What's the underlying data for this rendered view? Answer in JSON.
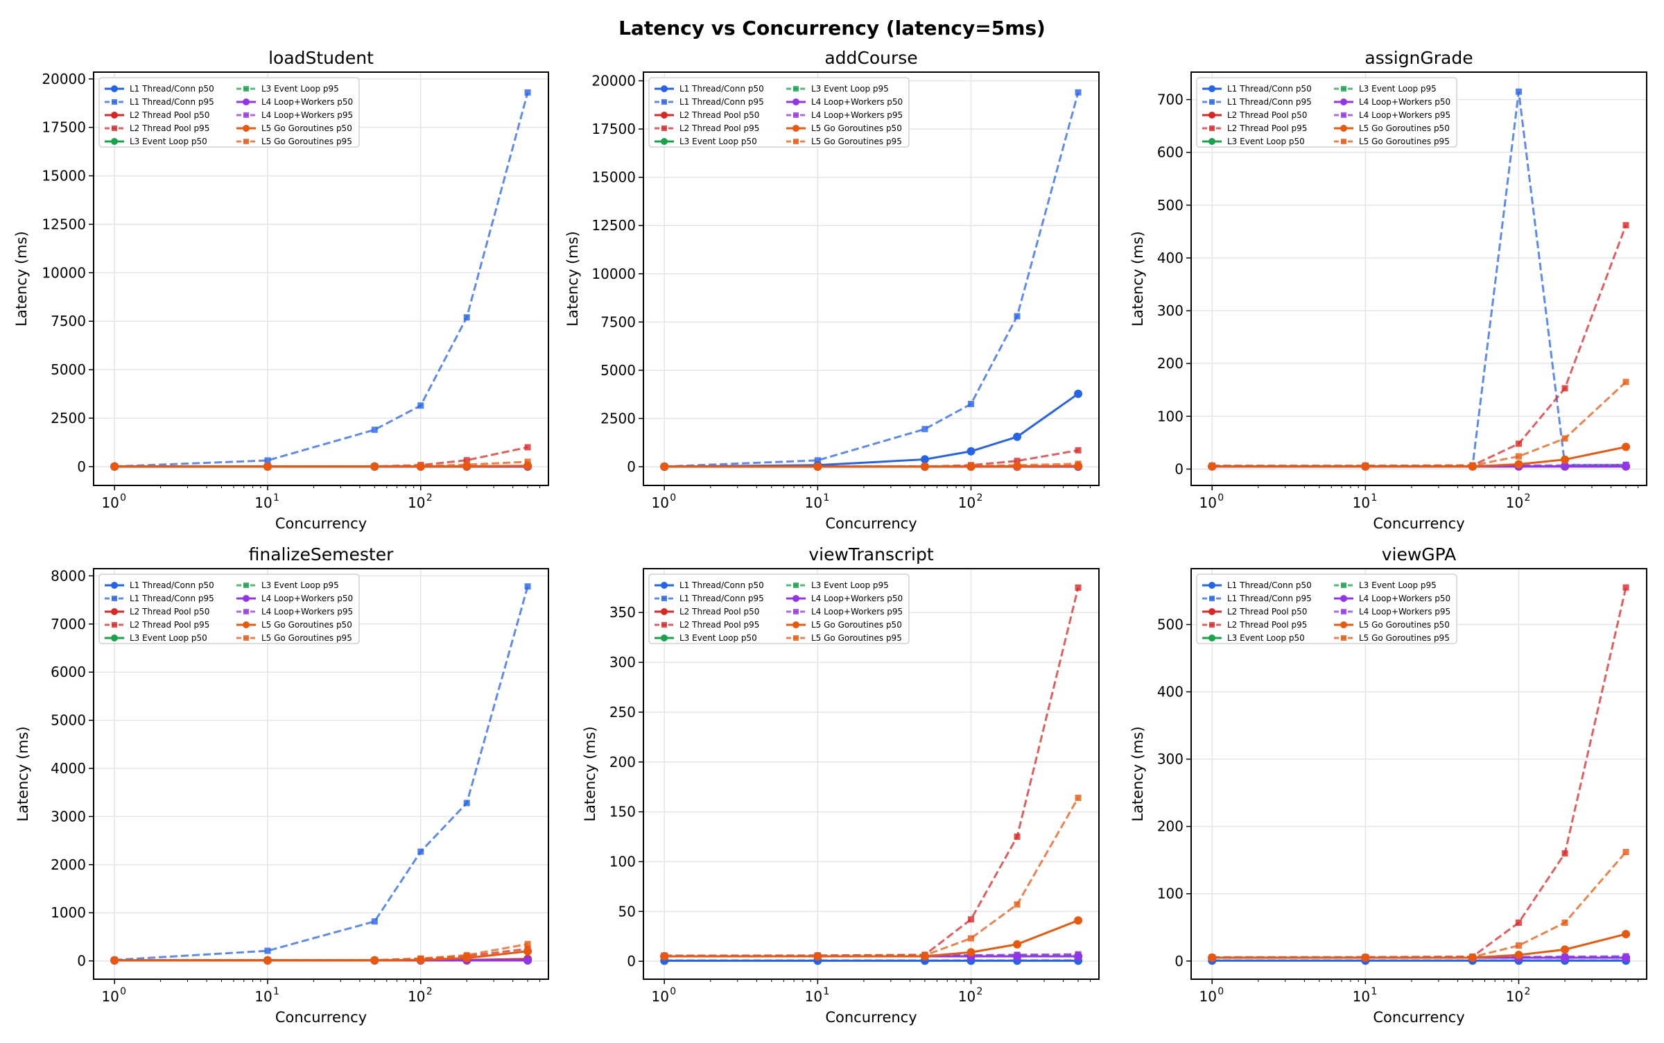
{
  "title": "Latency vs Concurrency (latency=5ms)",
  "series_styles": [
    {
      "name": "L1 Thread/Conn p50",
      "color": "#2563eb",
      "dash": false,
      "marker": "circle"
    },
    {
      "name": "L1 Thread/Conn p95",
      "color": "#2563eb",
      "dash": true,
      "marker": "square"
    },
    {
      "name": "L2 Thread Pool p50",
      "color": "#dc2626",
      "dash": false,
      "marker": "circle"
    },
    {
      "name": "L2 Thread Pool p95",
      "color": "#dc2626",
      "dash": true,
      "marker": "square"
    },
    {
      "name": "L3 Event Loop p50",
      "color": "#16a34a",
      "dash": false,
      "marker": "circle"
    },
    {
      "name": "L3 Event Loop p95",
      "color": "#16a34a",
      "dash": true,
      "marker": "square"
    },
    {
      "name": "L4 Loop+Workers p50",
      "color": "#9333ea",
      "dash": false,
      "marker": "circle"
    },
    {
      "name": "L4 Loop+Workers p95",
      "color": "#9333ea",
      "dash": true,
      "marker": "square"
    },
    {
      "name": "L5 Go Goroutines p50",
      "color": "#ea580c",
      "dash": false,
      "marker": "circle"
    },
    {
      "name": "L5 Go Goroutines p95",
      "color": "#ea580c",
      "dash": true,
      "marker": "square"
    }
  ],
  "chart_data": [
    {
      "type": "line",
      "title": "loadStudent",
      "xlabel": "Concurrency",
      "ylabel": "Latency (ms)",
      "xscale": "log",
      "x": [
        1,
        10,
        50,
        100,
        200,
        500
      ],
      "xlim": [
        0.73,
        683
      ],
      "ylim": [
        -970,
        20350
      ],
      "yticks": [
        0,
        2500,
        5000,
        7500,
        10000,
        12500,
        15000,
        17500,
        20000
      ],
      "xticks": [
        "10^0",
        "10^1",
        "10^2"
      ],
      "grid": true,
      "legend": "top-left",
      "series": [
        {
          "name": "L1 Thread/Conn p50",
          "values": [
            5,
            5,
            5,
            5,
            5,
            6
          ]
        },
        {
          "name": "L1 Thread/Conn p95",
          "values": [
            10,
            320,
            1900,
            3150,
            7700,
            19300
          ]
        },
        {
          "name": "L2 Thread Pool p50",
          "values": [
            5,
            5,
            5,
            5,
            6,
            8
          ]
        },
        {
          "name": "L2 Thread Pool p95",
          "values": [
            6,
            7,
            9,
            80,
            330,
            1000
          ]
        },
        {
          "name": "L3 Event Loop p50",
          "values": [
            5,
            5,
            5,
            5,
            5,
            5
          ]
        },
        {
          "name": "L3 Event Loop p95",
          "values": [
            6,
            6,
            6,
            6,
            6,
            7
          ]
        },
        {
          "name": "L4 Loop+Workers p50",
          "values": [
            5,
            5,
            5,
            5,
            5,
            5
          ]
        },
        {
          "name": "L4 Loop+Workers p95",
          "values": [
            6,
            6,
            6,
            6,
            7,
            8
          ]
        },
        {
          "name": "L5 Go Goroutines p50",
          "values": [
            5,
            5,
            5,
            9,
            18,
            42
          ]
        },
        {
          "name": "L5 Go Goroutines p95",
          "values": [
            6,
            6,
            7,
            30,
            100,
            250
          ]
        }
      ]
    },
    {
      "type": "line",
      "title": "addCourse",
      "xlabel": "Concurrency",
      "ylabel": "Latency (ms)",
      "xscale": "log",
      "x": [
        1,
        10,
        50,
        100,
        200,
        500
      ],
      "xlim": [
        0.73,
        683
      ],
      "ylim": [
        -970,
        20450
      ],
      "yticks": [
        0,
        2500,
        5000,
        7500,
        10000,
        12500,
        15000,
        17500,
        20000
      ],
      "xticks": [
        "10^0",
        "10^1",
        "10^2"
      ],
      "grid": true,
      "legend": "top-left",
      "series": [
        {
          "name": "L1 Thread/Conn p50",
          "values": [
            5,
            80,
            380,
            800,
            1550,
            3780
          ]
        },
        {
          "name": "L1 Thread/Conn p95",
          "values": [
            10,
            330,
            1950,
            3250,
            7800,
            19400
          ]
        },
        {
          "name": "L2 Thread Pool p50",
          "values": [
            5,
            5,
            5,
            5,
            6,
            8
          ]
        },
        {
          "name": "L2 Thread Pool p95",
          "values": [
            6,
            7,
            9,
            80,
            300,
            850
          ]
        },
        {
          "name": "L3 Event Loop p50",
          "values": [
            5,
            5,
            5,
            5,
            5,
            5
          ]
        },
        {
          "name": "L3 Event Loop p95",
          "values": [
            6,
            6,
            6,
            6,
            6,
            7
          ]
        },
        {
          "name": "L4 Loop+Workers p50",
          "values": [
            5,
            5,
            5,
            5,
            5,
            5
          ]
        },
        {
          "name": "L4 Loop+Workers p95",
          "values": [
            6,
            6,
            6,
            6,
            7,
            8
          ]
        },
        {
          "name": "L5 Go Goroutines p50",
          "values": [
            5,
            5,
            5,
            9,
            18,
            42
          ]
        },
        {
          "name": "L5 Go Goroutines p95",
          "values": [
            6,
            6,
            7,
            30,
            80,
            150
          ]
        }
      ]
    },
    {
      "type": "line",
      "title": "assignGrade",
      "xlabel": "Concurrency",
      "ylabel": "Latency (ms)",
      "xscale": "log",
      "x": [
        1,
        10,
        50,
        100,
        200,
        500
      ],
      "xlim": [
        0.73,
        683
      ],
      "ylim": [
        -31,
        752
      ],
      "yticks": [
        0,
        100,
        200,
        300,
        400,
        500,
        600,
        700
      ],
      "xticks": [
        "10^0",
        "10^1",
        "10^2"
      ],
      "grid": true,
      "legend": "top-left",
      "series": [
        {
          "name": "L1 Thread/Conn p50",
          "values": [
            5,
            5,
            5,
            5,
            5,
            5
          ]
        },
        {
          "name": "L1 Thread/Conn p95",
          "values": [
            6,
            6,
            6,
            715,
            8,
            8
          ]
        },
        {
          "name": "L2 Thread Pool p50",
          "values": [
            5,
            5,
            5,
            5,
            5,
            5
          ]
        },
        {
          "name": "L2 Thread Pool p95",
          "values": [
            6,
            6,
            7,
            48,
            153,
            462
          ]
        },
        {
          "name": "L3 Event Loop p50",
          "values": [
            5,
            5,
            5,
            5,
            5,
            5
          ]
        },
        {
          "name": "L3 Event Loop p95",
          "values": [
            6,
            6,
            6,
            6,
            6,
            7
          ]
        },
        {
          "name": "L4 Loop+Workers p50",
          "values": [
            5,
            5,
            5,
            5,
            5,
            5
          ]
        },
        {
          "name": "L4 Loop+Workers p95",
          "values": [
            6,
            6,
            6,
            7,
            7,
            8
          ]
        },
        {
          "name": "L5 Go Goroutines p50",
          "values": [
            5,
            5,
            5,
            9,
            18,
            42
          ]
        },
        {
          "name": "L5 Go Goroutines p95",
          "values": [
            6,
            6,
            7,
            24,
            58,
            165
          ]
        }
      ]
    },
    {
      "type": "line",
      "title": "finalizeSemester",
      "xlabel": "Concurrency",
      "ylabel": "Latency (ms)",
      "xscale": "log",
      "x": [
        1,
        10,
        50,
        100,
        200,
        500
      ],
      "xlim": [
        0.73,
        683
      ],
      "ylim": [
        -380,
        8150
      ],
      "yticks": [
        0,
        1000,
        2000,
        3000,
        4000,
        5000,
        6000,
        7000,
        8000
      ],
      "xticks": [
        "10^0",
        "10^1",
        "10^2"
      ],
      "grid": true,
      "legend": "top-left",
      "series": [
        {
          "name": "L1 Thread/Conn p50",
          "values": [
            10,
            10,
            10,
            10,
            10,
            12
          ]
        },
        {
          "name": "L1 Thread/Conn p95",
          "values": [
            20,
            210,
            820,
            2270,
            3280,
            7780
          ]
        },
        {
          "name": "L2 Thread Pool p50",
          "values": [
            10,
            10,
            10,
            12,
            20,
            40
          ]
        },
        {
          "name": "L2 Thread Pool p95",
          "values": [
            12,
            14,
            16,
            40,
            100,
            250
          ]
        },
        {
          "name": "L3 Event Loop p50",
          "values": [
            10,
            10,
            10,
            10,
            10,
            10
          ]
        },
        {
          "name": "L3 Event Loop p95",
          "values": [
            12,
            12,
            12,
            12,
            13,
            14
          ]
        },
        {
          "name": "L4 Loop+Workers p50",
          "values": [
            10,
            10,
            10,
            10,
            10,
            10
          ]
        },
        {
          "name": "L4 Loop+Workers p95",
          "values": [
            12,
            12,
            12,
            13,
            14,
            15
          ]
        },
        {
          "name": "L5 Go Goroutines p50",
          "values": [
            10,
            10,
            12,
            20,
            60,
            200
          ]
        },
        {
          "name": "L5 Go Goroutines p95",
          "values": [
            12,
            14,
            16,
            50,
            120,
            350
          ]
        }
      ]
    },
    {
      "type": "line",
      "title": "viewTranscript",
      "xlabel": "Concurrency",
      "ylabel": "Latency (ms)",
      "xscale": "log",
      "x": [
        1,
        10,
        50,
        100,
        200,
        500
      ],
      "xlim": [
        0.73,
        683
      ],
      "ylim": [
        -18,
        394
      ],
      "yticks": [
        0,
        50,
        100,
        150,
        200,
        250,
        300,
        350
      ],
      "xticks": [
        "10^0",
        "10^1",
        "10^2"
      ],
      "grid": true,
      "legend": "top-left",
      "series": [
        {
          "name": "L1 Thread/Conn p50",
          "values": [
            0.5,
            0.5,
            0.5,
            0.5,
            0.5,
            0.5
          ]
        },
        {
          "name": "L1 Thread/Conn p95",
          "values": [
            0.8,
            0.8,
            0.8,
            0.8,
            0.8,
            0.9
          ]
        },
        {
          "name": "L2 Thread Pool p50",
          "values": [
            5,
            5,
            5,
            5,
            5,
            5
          ]
        },
        {
          "name": "L2 Thread Pool p95",
          "values": [
            5.5,
            5.8,
            6.5,
            42,
            125,
            375
          ]
        },
        {
          "name": "L3 Event Loop p50",
          "values": [
            5,
            5,
            5,
            5,
            5,
            5
          ]
        },
        {
          "name": "L3 Event Loop p95",
          "values": [
            5.5,
            5.5,
            5.5,
            5.8,
            6,
            6.5
          ]
        },
        {
          "name": "L4 Loop+Workers p50",
          "values": [
            5,
            5,
            5,
            5,
            5,
            5
          ]
        },
        {
          "name": "L4 Loop+Workers p95",
          "values": [
            5.5,
            5.5,
            5.8,
            6,
            6.5,
            7
          ]
        },
        {
          "name": "L5 Go Goroutines p50",
          "values": [
            5,
            5,
            5,
            9,
            17,
            41
          ]
        },
        {
          "name": "L5 Go Goroutines p95",
          "values": [
            5.5,
            5.5,
            6,
            23,
            57,
            164
          ]
        }
      ]
    },
    {
      "type": "line",
      "title": "viewGPA",
      "xlabel": "Concurrency",
      "ylabel": "Latency (ms)",
      "xscale": "log",
      "x": [
        1,
        10,
        50,
        100,
        200,
        500
      ],
      "xlim": [
        0.73,
        683
      ],
      "ylim": [
        -27,
        583
      ],
      "yticks": [
        0,
        100,
        200,
        300,
        400,
        500
      ],
      "xticks": [
        "10^0",
        "10^1",
        "10^2"
      ],
      "grid": true,
      "legend": "top-left",
      "series": [
        {
          "name": "L1 Thread/Conn p50",
          "values": [
            0.5,
            0.5,
            0.5,
            0.5,
            0.5,
            0.5
          ]
        },
        {
          "name": "L1 Thread/Conn p95",
          "values": [
            0.8,
            0.8,
            0.8,
            0.8,
            0.8,
            0.9
          ]
        },
        {
          "name": "L2 Thread Pool p50",
          "values": [
            5,
            5,
            5,
            5,
            5,
            5
          ]
        },
        {
          "name": "L2 Thread Pool p95",
          "values": [
            5.5,
            5.8,
            6.5,
            57,
            160,
            555
          ]
        },
        {
          "name": "L3 Event Loop p50",
          "values": [
            5,
            5,
            5,
            5,
            5,
            5
          ]
        },
        {
          "name": "L3 Event Loop p95",
          "values": [
            5.5,
            5.5,
            5.5,
            5.8,
            6,
            6.5
          ]
        },
        {
          "name": "L4 Loop+Workers p50",
          "values": [
            5,
            5,
            5,
            5,
            5,
            5
          ]
        },
        {
          "name": "L4 Loop+Workers p95",
          "values": [
            5.5,
            5.5,
            5.8,
            6,
            6.5,
            7
          ]
        },
        {
          "name": "L5 Go Goroutines p50",
          "values": [
            5,
            5,
            5,
            9,
            17,
            40
          ]
        },
        {
          "name": "L5 Go Goroutines p95",
          "values": [
            5.5,
            5.5,
            6,
            23,
            57,
            162
          ]
        }
      ]
    }
  ]
}
